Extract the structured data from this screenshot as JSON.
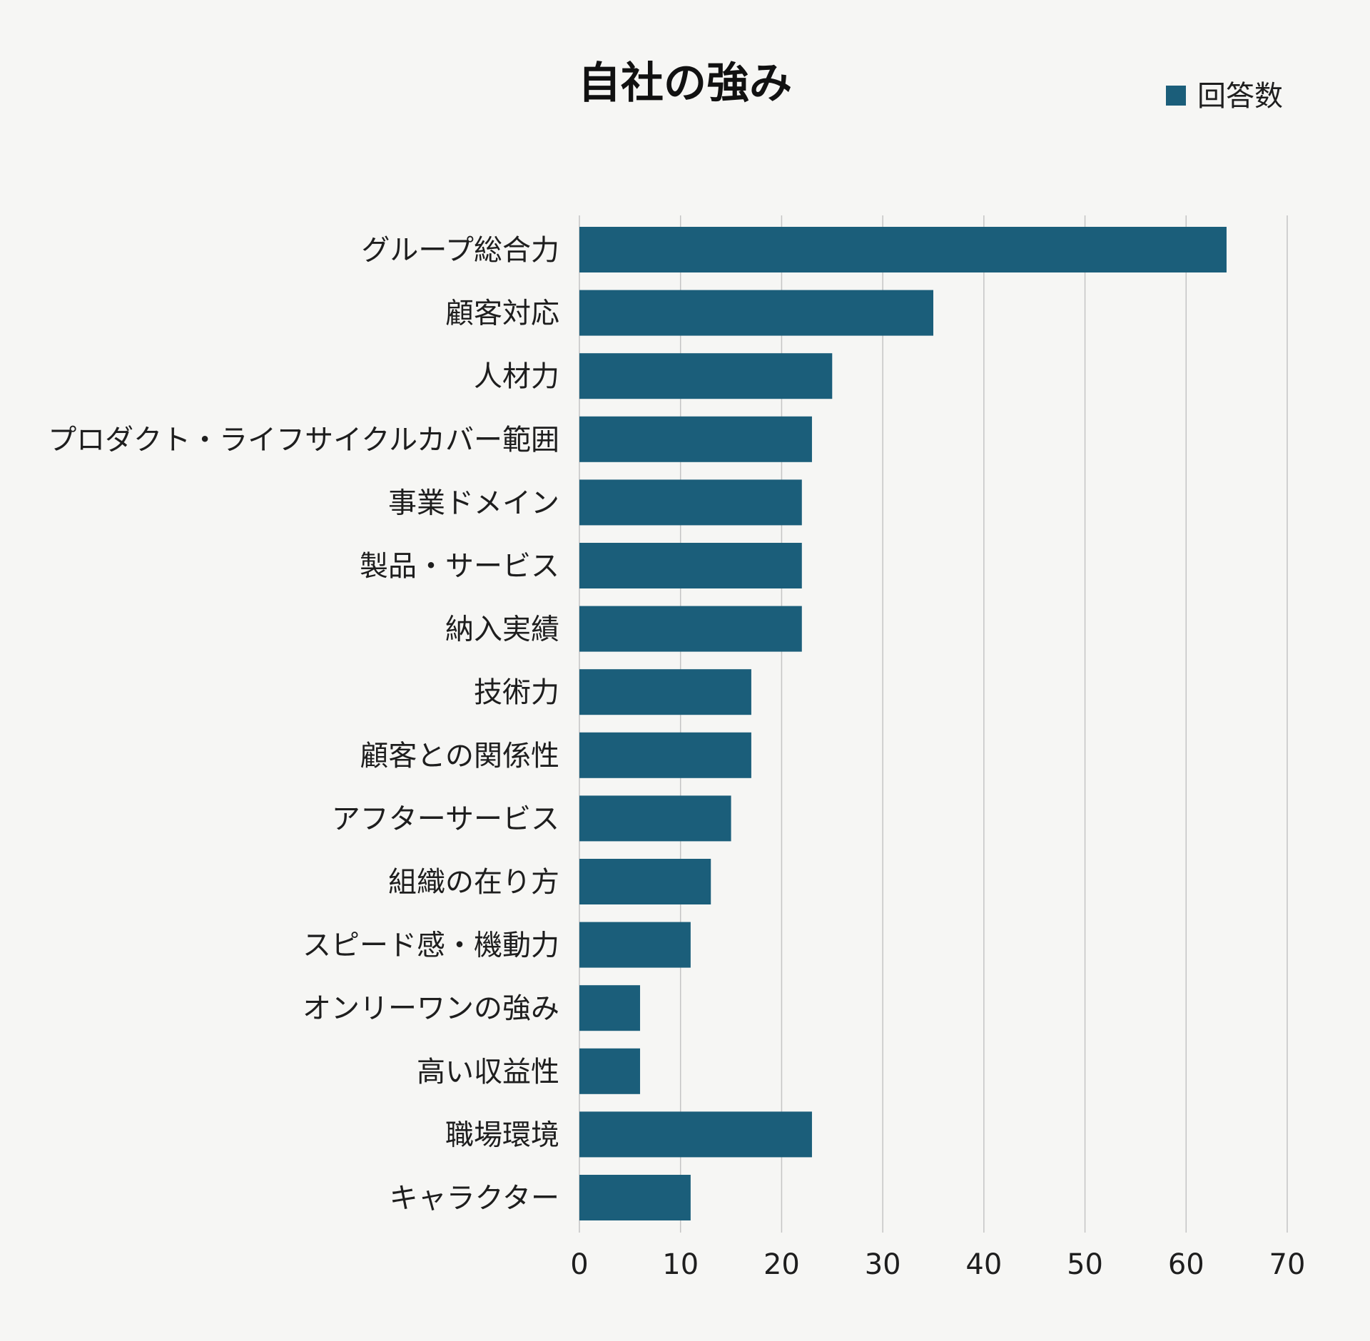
{
  "chart_data": {
    "type": "bar",
    "orientation": "horizontal",
    "title": "自社の強み",
    "categories": [
      "グループ総合力",
      "顧客対応",
      "人材力",
      "プロダクト・ライフサイクルカバー範囲",
      "事業ドメイン",
      "製品・サービス",
      "納入実績",
      "技術力",
      "顧客との関係性",
      "アフターサービス",
      "組織の在り方",
      "スピード感・機動力",
      "オンリーワンの強み",
      "高い収益性",
      "職場環境",
      "キャラクター"
    ],
    "series": [
      {
        "name": "回答数",
        "color": "#1b5e7a",
        "values": [
          64,
          35,
          25,
          23,
          22,
          22,
          22,
          17,
          17,
          15,
          13,
          11,
          6,
          6,
          23,
          11
        ]
      }
    ],
    "xlim": [
      0,
      70
    ],
    "xticks": [
      0,
      10,
      20,
      30,
      40,
      50,
      60,
      70
    ],
    "xlabel": "",
    "ylabel": "",
    "grid": "vertical",
    "legend": "top-right"
  }
}
